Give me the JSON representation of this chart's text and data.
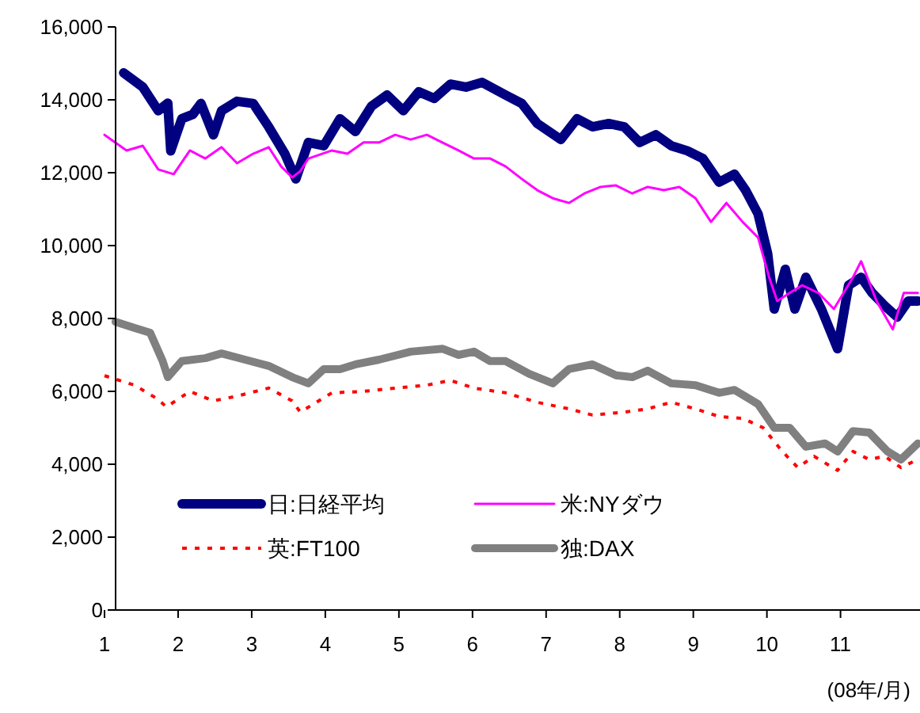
{
  "chart_data": {
    "type": "line",
    "xlabel": "(08年/月)",
    "xlim": [
      1,
      12.08
    ],
    "xticks": [
      1,
      2,
      3,
      4,
      5,
      6,
      7,
      8,
      9,
      10,
      11
    ],
    "ylim": [
      0,
      16000
    ],
    "yticks": [
      {
        "value": 0,
        "label": "0"
      },
      {
        "value": 2000,
        "label": "2,000"
      },
      {
        "value": 4000,
        "label": "4,000"
      },
      {
        "value": 6000,
        "label": "6,000"
      },
      {
        "value": 8000,
        "label": "8,000"
      },
      {
        "value": 10000,
        "label": "10,000"
      },
      {
        "value": 12000,
        "label": "12,000"
      },
      {
        "value": 14000,
        "label": "14,000"
      },
      {
        "value": 16000,
        "label": "16,000"
      }
    ],
    "legend": "bottom",
    "grid": false,
    "series": [
      {
        "name": "日:日経平均",
        "color": "#000080",
        "line_style": "solid",
        "x": [
          1.26,
          1.52,
          1.73,
          1.86,
          1.9,
          2.05,
          2.2,
          2.31,
          2.48,
          2.59,
          2.8,
          3.02,
          3.23,
          3.45,
          3.6,
          3.77,
          3.98,
          4.2,
          4.41,
          4.63,
          4.84,
          5.06,
          5.27,
          5.48,
          5.7,
          5.91,
          6.13,
          6.45,
          6.67,
          6.88,
          7.2,
          7.42,
          7.63,
          7.85,
          8.06,
          8.27,
          8.49,
          8.7,
          8.92,
          9.13,
          9.35,
          9.56,
          9.71,
          9.88,
          10.01,
          10.1,
          10.25,
          10.38,
          10.53,
          10.74,
          10.96,
          11.11,
          11.28,
          11.43,
          11.6,
          11.77,
          11.92,
          12.05
        ],
        "values": [
          14740,
          14350,
          13700,
          13910,
          12600,
          13480,
          13600,
          13900,
          13040,
          13700,
          13960,
          13900,
          13260,
          12520,
          11830,
          12830,
          12740,
          13480,
          13130,
          13830,
          14130,
          13700,
          14220,
          14040,
          14430,
          14350,
          14480,
          14130,
          13900,
          13350,
          12910,
          13480,
          13260,
          13350,
          13260,
          12830,
          13040,
          12740,
          12600,
          12390,
          11740,
          11960,
          11520,
          10870,
          9780,
          8260,
          9350,
          8260,
          9130,
          8260,
          7170,
          8910,
          9130,
          8700,
          8350,
          8040,
          8480,
          8480
        ]
      },
      {
        "name": "米:NYダウ",
        "color": "#ff00ff",
        "line_style": "solid",
        "x": [
          1.0,
          1.3,
          1.52,
          1.73,
          1.94,
          2.16,
          2.37,
          2.59,
          2.8,
          3.02,
          3.23,
          3.4,
          3.55,
          3.66,
          3.77,
          4.09,
          4.3,
          4.52,
          4.73,
          4.95,
          5.16,
          5.38,
          5.59,
          5.81,
          6.02,
          6.24,
          6.45,
          6.67,
          6.88,
          7.09,
          7.31,
          7.52,
          7.74,
          7.95,
          8.17,
          8.38,
          8.6,
          8.81,
          9.03,
          9.24,
          9.45,
          9.67,
          9.88,
          10.03,
          10.14,
          10.31,
          10.48,
          10.7,
          10.91,
          11.17,
          11.28,
          11.49,
          11.71,
          11.86,
          12.05
        ],
        "values": [
          13040,
          12610,
          12740,
          12090,
          11960,
          12610,
          12390,
          12700,
          12260,
          12520,
          12700,
          12170,
          11870,
          12040,
          12390,
          12610,
          12520,
          12830,
          12830,
          13040,
          12910,
          13040,
          12830,
          12610,
          12390,
          12390,
          12170,
          11830,
          11520,
          11300,
          11170,
          11430,
          11610,
          11650,
          11430,
          11610,
          11520,
          11610,
          11300,
          10650,
          11170,
          10650,
          10220,
          9130,
          8480,
          8700,
          8910,
          8700,
          8260,
          9130,
          9570,
          8480,
          7700,
          8700,
          8700
        ]
      },
      {
        "name": "英:FT100",
        "color": "#ff0000",
        "line_style": "dotted",
        "x": [
          1.0,
          1.41,
          1.73,
          1.84,
          2.16,
          2.48,
          2.8,
          3.23,
          3.55,
          3.66,
          4.09,
          4.52,
          4.95,
          5.38,
          5.7,
          6.02,
          6.45,
          6.88,
          7.31,
          7.63,
          8.06,
          8.38,
          8.7,
          9.03,
          9.35,
          9.67,
          9.95,
          10.21,
          10.42,
          10.64,
          10.96,
          11.17,
          11.39,
          11.6,
          11.82,
          12.05
        ],
        "values": [
          6430,
          6170,
          5780,
          5570,
          6000,
          5740,
          5870,
          6090,
          5740,
          5430,
          5960,
          6000,
          6090,
          6170,
          6300,
          6090,
          5960,
          5700,
          5520,
          5350,
          5430,
          5520,
          5700,
          5520,
          5310,
          5260,
          5000,
          4350,
          3910,
          4220,
          3830,
          4350,
          4130,
          4220,
          3910,
          4130
        ]
      },
      {
        "name": "独:DAX",
        "color": "#808080",
        "line_style": "solid",
        "x": [
          1.15,
          1.41,
          1.62,
          1.79,
          1.86,
          2.05,
          2.37,
          2.59,
          2.91,
          3.23,
          3.55,
          3.77,
          3.98,
          4.2,
          4.41,
          4.73,
          5.16,
          5.59,
          5.81,
          6.02,
          6.24,
          6.45,
          6.77,
          7.09,
          7.31,
          7.63,
          7.95,
          8.17,
          8.38,
          8.7,
          9.03,
          9.35,
          9.56,
          9.88,
          10.1,
          10.31,
          10.53,
          10.79,
          10.96,
          11.17,
          11.39,
          11.64,
          11.82,
          12.05
        ],
        "values": [
          7910,
          7740,
          7610,
          6830,
          6390,
          6830,
          6910,
          7040,
          6870,
          6700,
          6390,
          6220,
          6610,
          6610,
          6740,
          6870,
          7090,
          7170,
          7000,
          7090,
          6830,
          6830,
          6480,
          6220,
          6610,
          6740,
          6440,
          6390,
          6570,
          6220,
          6170,
          5960,
          6040,
          5650,
          5000,
          5000,
          4480,
          4570,
          4350,
          4910,
          4870,
          4350,
          4130,
          4570
        ]
      }
    ]
  }
}
